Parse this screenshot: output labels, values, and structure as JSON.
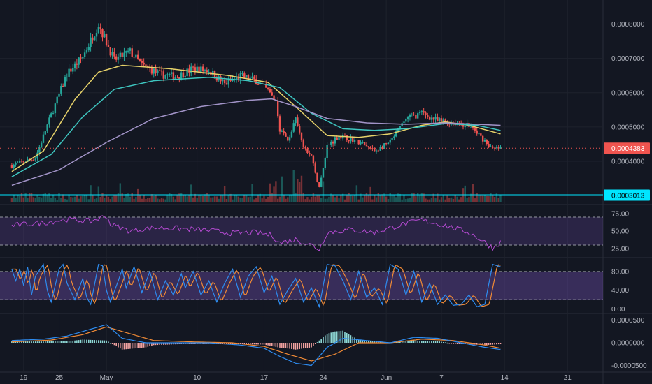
{
  "chart_data": {
    "type": "candlestick",
    "title": "",
    "x_axis": {
      "ticks": [
        {
          "label": "19",
          "t": 3
        },
        {
          "label": "25",
          "t": 12
        },
        {
          "label": "May",
          "t": 24
        },
        {
          "label": "10",
          "t": 47
        },
        {
          "label": "17",
          "t": 64
        },
        {
          "label": "24",
          "t": 79
        },
        {
          "label": "Jun",
          "t": 95
        },
        {
          "label": "7",
          "t": 109
        },
        {
          "label": "14",
          "t": 125
        },
        {
          "label": "21",
          "t": 141
        }
      ],
      "range": [
        -3,
        150
      ]
    },
    "price_panel": {
      "ylim": [
        0.00028,
        0.00085
      ],
      "ticks": [
        {
          "label": "0.0008000",
          "v": 0.0008
        },
        {
          "label": "0.0007000",
          "v": 0.0007
        },
        {
          "label": "0.0006000",
          "v": 0.0006
        },
        {
          "label": "0.0005000",
          "v": 0.0005
        },
        {
          "label": "0.0004000",
          "v": 0.0004
        }
      ],
      "price_key_points": [
        [
          0,
          0.000388
        ],
        [
          6,
          0.00041
        ],
        [
          9,
          0.000505
        ],
        [
          14,
          0.000655
        ],
        [
          18,
          0.000705
        ],
        [
          22,
          0.0008
        ],
        [
          26,
          0.000695
        ],
        [
          30,
          0.00072
        ],
        [
          33,
          0.00068
        ],
        [
          38,
          0.000652
        ],
        [
          42,
          0.000648
        ],
        [
          46,
          0.00067
        ],
        [
          50,
          0.000665
        ],
        [
          54,
          0.000625
        ],
        [
          58,
          0.000648
        ],
        [
          62,
          0.000635
        ],
        [
          65,
          0.000605
        ],
        [
          67,
          0.000575
        ],
        [
          68,
          0.000495
        ],
        [
          70,
          0.00046
        ],
        [
          72,
          0.00052
        ],
        [
          74,
          0.00044
        ],
        [
          76,
          0.000415
        ],
        [
          78,
          0.00032
        ],
        [
          80,
          0.000445
        ],
        [
          83,
          0.000475
        ],
        [
          86,
          0.000465
        ],
        [
          89,
          0.00045
        ],
        [
          92,
          0.00043
        ],
        [
          96,
          0.000455
        ],
        [
          100,
          0.000525
        ],
        [
          104,
          0.00054
        ],
        [
          108,
          0.000518
        ],
        [
          112,
          0.000513
        ],
        [
          116,
          0.000505
        ],
        [
          120,
          0.00046
        ],
        [
          122,
          0.000435
        ],
        [
          124,
          0.000438
        ]
      ],
      "moving_averages": [
        {
          "color": "#e8d36a",
          "points": [
            [
              0,
              0.00037
            ],
            [
              8,
              0.00043
            ],
            [
              16,
              0.00058
            ],
            [
              22,
              0.00066
            ],
            [
              28,
              0.00068
            ],
            [
              40,
              0.00067
            ],
            [
              55,
              0.00065
            ],
            [
              65,
              0.00063
            ],
            [
              72,
              0.00056
            ],
            [
              80,
              0.000475
            ],
            [
              88,
              0.00047
            ],
            [
              96,
              0.00048
            ],
            [
              104,
              0.000505
            ],
            [
              110,
              0.000515
            ],
            [
              116,
              0.000505
            ],
            [
              124,
              0.00048
            ]
          ]
        },
        {
          "color": "#3ec6c0",
          "points": [
            [
              0,
              0.000355
            ],
            [
              10,
              0.00042
            ],
            [
              18,
              0.00053
            ],
            [
              26,
              0.00061
            ],
            [
              36,
              0.000635
            ],
            [
              50,
              0.000645
            ],
            [
              60,
              0.000635
            ],
            [
              68,
              0.000615
            ],
            [
              76,
              0.00054
            ],
            [
              84,
              0.000495
            ],
            [
              92,
              0.00049
            ],
            [
              100,
              0.000495
            ],
            [
              110,
              0.00051
            ],
            [
              118,
              0.000505
            ],
            [
              124,
              0.00049
            ]
          ]
        },
        {
          "color": "#a294c8",
          "points": [
            [
              0,
              0.00033
            ],
            [
              12,
              0.000375
            ],
            [
              24,
              0.000455
            ],
            [
              36,
              0.000525
            ],
            [
              48,
              0.00056
            ],
            [
              60,
              0.000578
            ],
            [
              66,
              0.000582
            ],
            [
              72,
              0.00056
            ],
            [
              80,
              0.000525
            ],
            [
              90,
              0.000512
            ],
            [
              100,
              0.000508
            ],
            [
              110,
              0.000512
            ],
            [
              124,
              0.000505
            ]
          ]
        }
      ],
      "last_price": {
        "label": "0.0004383",
        "v": 0.0004383,
        "color": "#f0544f"
      },
      "horizontal_line": {
        "label": "0.0003013",
        "v": 0.0003013,
        "color": "#00e5ff"
      },
      "volume_scale": 3e-05
    },
    "rsi_panel": {
      "ylim": [
        15,
        85
      ],
      "ticks": [
        {
          "label": "75.00",
          "v": 75
        },
        {
          "label": "50.00",
          "v": 50
        },
        {
          "label": "25.00",
          "v": 25
        }
      ],
      "band": [
        30,
        70
      ],
      "line_color": "#b44ad1",
      "key_points": [
        [
          0,
          58
        ],
        [
          8,
          62
        ],
        [
          14,
          67
        ],
        [
          20,
          64
        ],
        [
          24,
          72
        ],
        [
          25,
          60
        ],
        [
          30,
          50
        ],
        [
          36,
          55
        ],
        [
          42,
          54
        ],
        [
          50,
          51
        ],
        [
          56,
          47
        ],
        [
          62,
          48
        ],
        [
          66,
          44
        ],
        [
          68,
          33
        ],
        [
          72,
          38
        ],
        [
          76,
          30
        ],
        [
          78,
          24
        ],
        [
          80,
          48
        ],
        [
          86,
          52
        ],
        [
          92,
          48
        ],
        [
          98,
          58
        ],
        [
          104,
          66
        ],
        [
          110,
          58
        ],
        [
          116,
          48
        ],
        [
          120,
          34
        ],
        [
          122,
          26
        ],
        [
          124,
          34
        ]
      ]
    },
    "stoch_panel": {
      "ylim": [
        -5,
        105
      ],
      "ticks": [
        {
          "label": "80.00",
          "v": 80
        },
        {
          "label": "40.00",
          "v": 40
        },
        {
          "label": "0.00",
          "v": 0
        }
      ],
      "band": [
        20,
        80
      ],
      "k_color": "#2e8cf0",
      "d_color": "#f08a36",
      "k_points": [
        [
          0,
          85
        ],
        [
          1,
          60
        ],
        [
          2,
          85
        ],
        [
          3,
          50
        ],
        [
          4,
          90
        ],
        [
          5,
          30
        ],
        [
          6,
          70
        ],
        [
          8,
          95
        ],
        [
          9,
          40
        ],
        [
          10,
          15
        ],
        [
          12,
          85
        ],
        [
          13,
          95
        ],
        [
          14,
          55
        ],
        [
          16,
          20
        ],
        [
          18,
          65
        ],
        [
          19,
          25
        ],
        [
          20,
          10
        ],
        [
          22,
          95
        ],
        [
          23,
          92
        ],
        [
          24,
          40
        ],
        [
          25,
          15
        ],
        [
          27,
          60
        ],
        [
          28,
          85
        ],
        [
          29,
          45
        ],
        [
          31,
          90
        ],
        [
          33,
          35
        ],
        [
          35,
          80
        ],
        [
          37,
          20
        ],
        [
          39,
          60
        ],
        [
          41,
          30
        ],
        [
          43,
          75
        ],
        [
          44,
          45
        ],
        [
          46,
          80
        ],
        [
          48,
          30
        ],
        [
          50,
          60
        ],
        [
          52,
          15
        ],
        [
          54,
          55
        ],
        [
          56,
          85
        ],
        [
          58,
          25
        ],
        [
          60,
          70
        ],
        [
          62,
          90
        ],
        [
          64,
          35
        ],
        [
          66,
          70
        ],
        [
          68,
          10
        ],
        [
          70,
          40
        ],
        [
          72,
          65
        ],
        [
          74,
          15
        ],
        [
          76,
          45
        ],
        [
          78,
          5
        ],
        [
          80,
          95
        ],
        [
          82,
          92
        ],
        [
          84,
          60
        ],
        [
          86,
          20
        ],
        [
          88,
          80
        ],
        [
          90,
          25
        ],
        [
          92,
          45
        ],
        [
          94,
          10
        ],
        [
          96,
          95
        ],
        [
          98,
          85
        ],
        [
          100,
          30
        ],
        [
          102,
          80
        ],
        [
          104,
          15
        ],
        [
          106,
          55
        ],
        [
          108,
          10
        ],
        [
          110,
          30
        ],
        [
          112,
          8
        ],
        [
          114,
          10
        ],
        [
          116,
          30
        ],
        [
          118,
          5
        ],
        [
          120,
          10
        ],
        [
          122,
          95
        ],
        [
          124,
          90
        ]
      ]
    },
    "macd_panel": {
      "ylim": [
        -6e-05,
        6e-05
      ],
      "ticks": [
        {
          "label": "0.0000500",
          "v": 5e-05
        },
        {
          "label": "0.0000000",
          "v": 0
        },
        {
          "label": "-0.0000500",
          "v": -5e-05
        }
      ],
      "macd_color": "#2e8cf0",
      "signal_color": "#f08a36",
      "macd_points": [
        [
          0,
          5e-06
        ],
        [
          8,
          8e-06
        ],
        [
          14,
          1.5e-05
        ],
        [
          20,
          3e-05
        ],
        [
          24,
          4e-05
        ],
        [
          28,
          1e-05
        ],
        [
          34,
          0.0
        ],
        [
          42,
          0.0
        ],
        [
          50,
          0.0
        ],
        [
          58,
          -5e-06
        ],
        [
          64,
          -1.2e-05
        ],
        [
          68,
          -3e-05
        ],
        [
          72,
          -4.5e-05
        ],
        [
          76,
          -5e-05
        ],
        [
          80,
          -1e-05
        ],
        [
          84,
          1e-05
        ],
        [
          90,
          5e-06
        ],
        [
          96,
          0.0
        ],
        [
          102,
          1.2e-05
        ],
        [
          108,
          1e-05
        ],
        [
          114,
          0.0
        ],
        [
          120,
          -1e-05
        ],
        [
          124,
          -1.5e-05
        ]
      ],
      "signal_points": [
        [
          0,
          2e-06
        ],
        [
          10,
          6e-06
        ],
        [
          18,
          1.8e-05
        ],
        [
          24,
          3.5e-05
        ],
        [
          30,
          2e-05
        ],
        [
          36,
          5e-06
        ],
        [
          46,
          2e-06
        ],
        [
          56,
          0.0
        ],
        [
          64,
          -8e-06
        ],
        [
          70,
          -2.5e-05
        ],
        [
          76,
          -4e-05
        ],
        [
          82,
          -2.5e-05
        ],
        [
          88,
          0.0
        ],
        [
          96,
          0.0
        ],
        [
          104,
          8e-06
        ],
        [
          112,
          5e-06
        ],
        [
          120,
          -5e-06
        ],
        [
          124,
          -1.2e-05
        ]
      ],
      "histogram_up_color": "#8fd9d6",
      "histogram_down_color": "#f4a3a1"
    }
  }
}
